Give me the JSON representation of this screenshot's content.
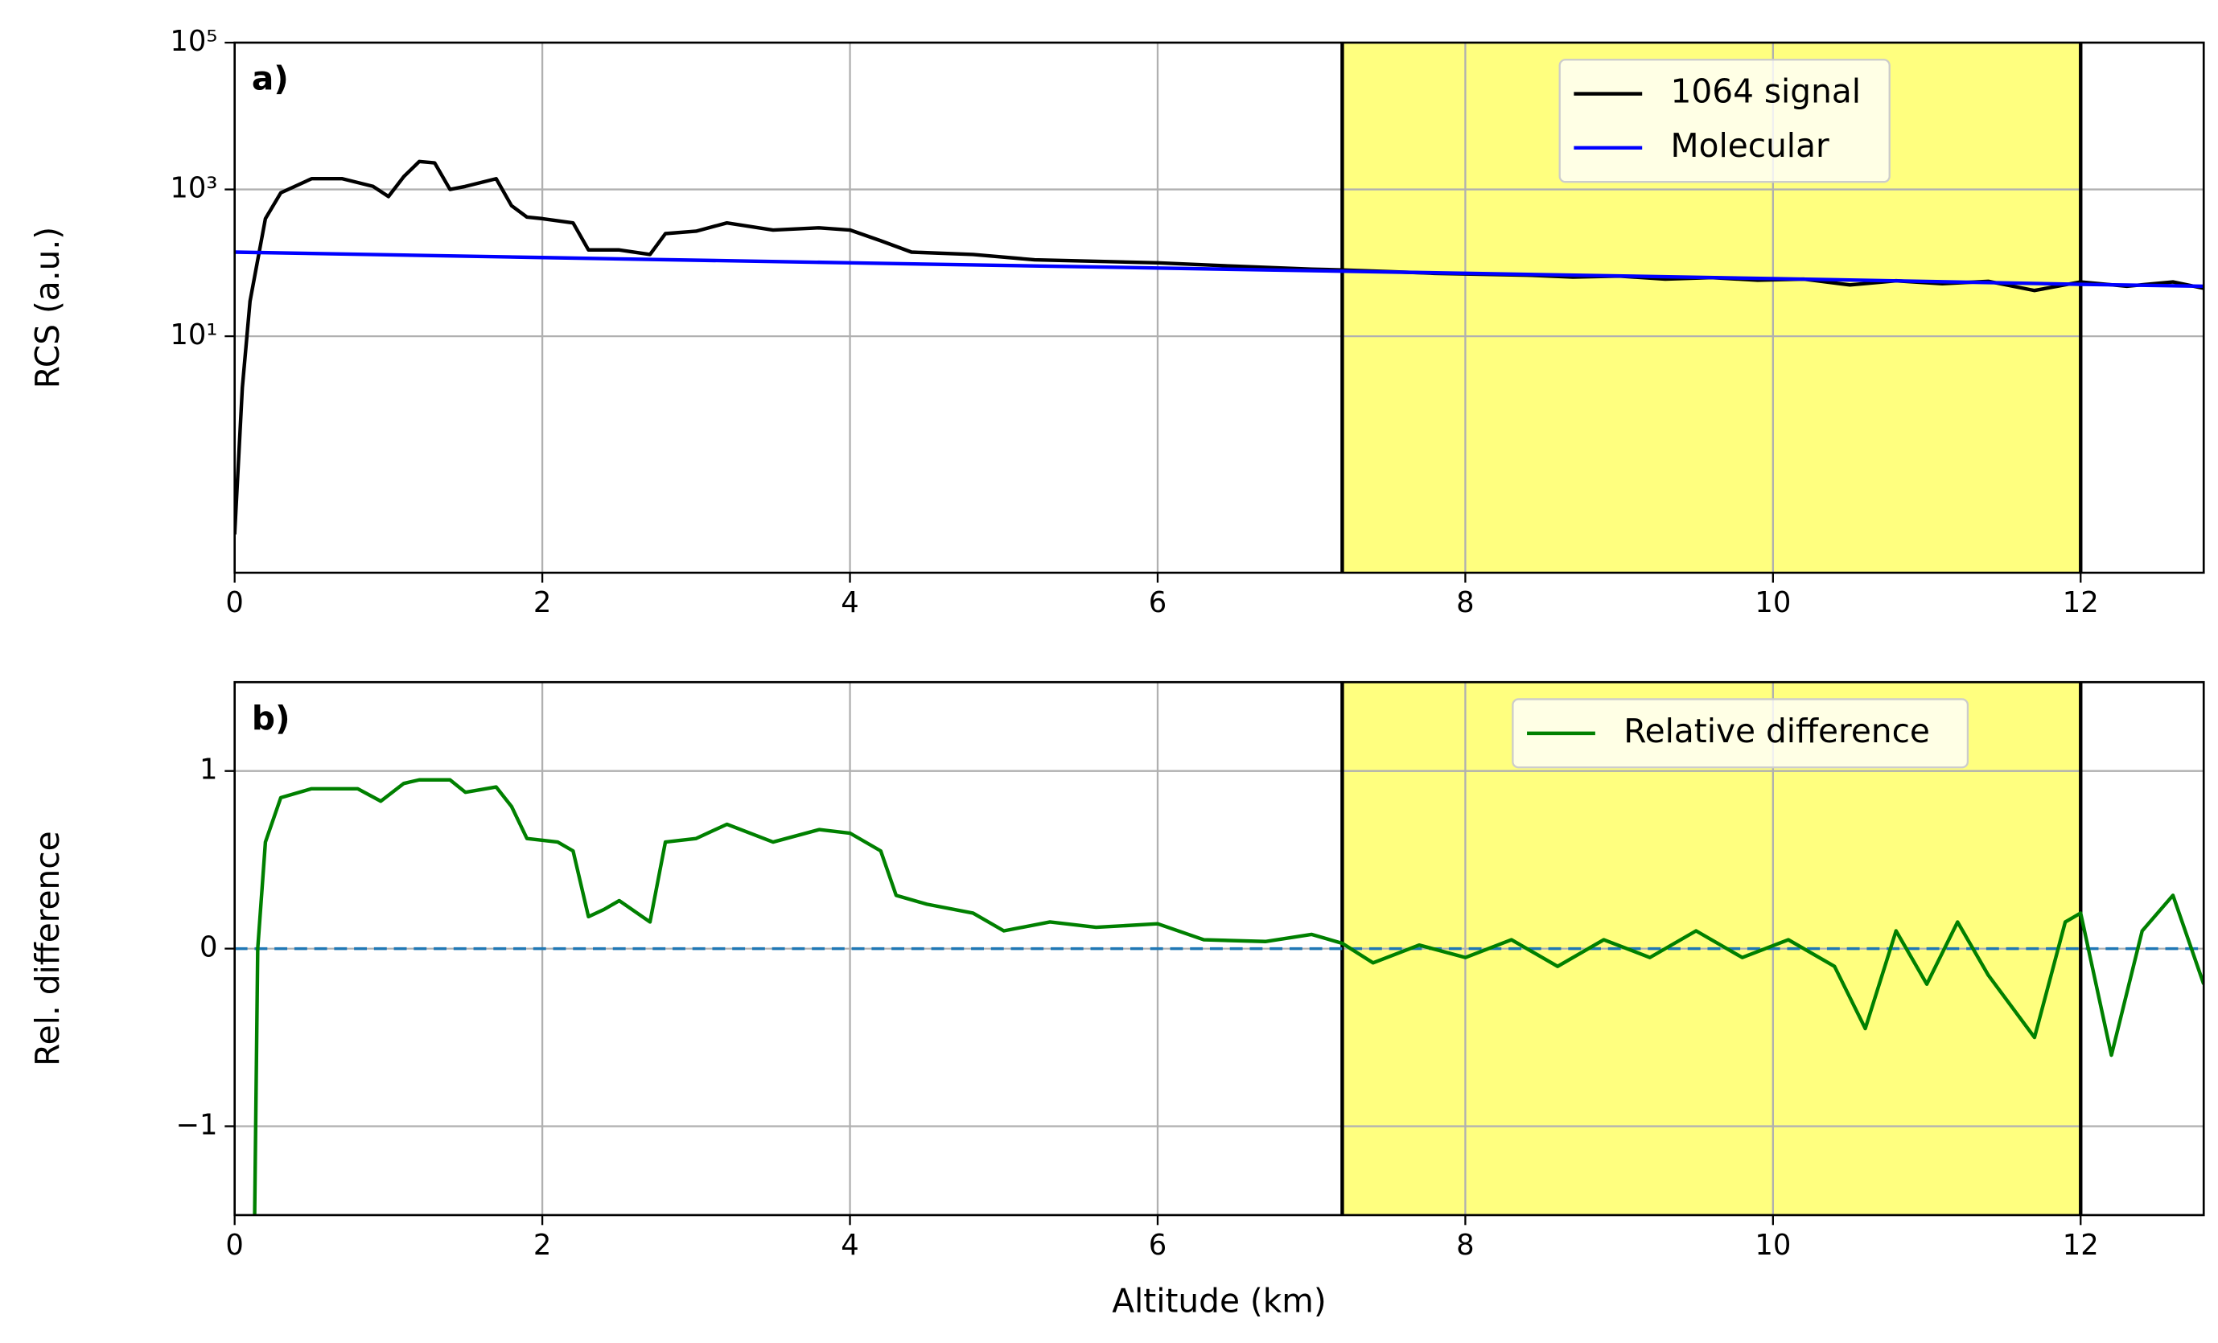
{
  "chart_data": [
    {
      "type": "line",
      "panel_label": "a)",
      "ylabel": "RCS (a.u.)",
      "log_y": true,
      "grid": true,
      "legend": "upper center",
      "xlim": [
        0,
        12.8
      ],
      "xticks": [
        0,
        2,
        4,
        6,
        8,
        10,
        12
      ],
      "ylim": [
        0.006,
        100000
      ],
      "yticks": [
        {
          "value": 10,
          "label": "10¹"
        },
        {
          "value": 1000,
          "label": "10³"
        },
        {
          "value": 100000,
          "label": "10⁵"
        }
      ],
      "shade": [
        7.2,
        12
      ],
      "shade_color": "#ffff7f",
      "series": [
        {
          "name": "1064 signal",
          "color": "#000000",
          "x": [
            0,
            0.05,
            0.1,
            0.2,
            0.3,
            0.5,
            0.7,
            0.9,
            1.0,
            1.1,
            1.2,
            1.3,
            1.4,
            1.5,
            1.7,
            1.8,
            1.9,
            2.0,
            2.2,
            2.3,
            2.5,
            2.7,
            2.8,
            3.0,
            3.2,
            3.5,
            3.8,
            4.0,
            4.2,
            4.4,
            4.8,
            5.2,
            5.6,
            6.0,
            6.5,
            7.0,
            7.2,
            7.5,
            7.8,
            8.1,
            8.4,
            8.7,
            9.0,
            9.3,
            9.6,
            9.9,
            10.2,
            10.5,
            10.8,
            11.1,
            11.4,
            11.7,
            12.0,
            12.3,
            12.6,
            12.8
          ],
          "values": [
            0.02,
            2,
            30,
            400,
            900,
            1400,
            1400,
            1100,
            800,
            1500,
            2400,
            2300,
            1000,
            1100,
            1400,
            600,
            420,
            400,
            350,
            150,
            150,
            130,
            250,
            270,
            350,
            280,
            300,
            280,
            200,
            140,
            130,
            110,
            105,
            100,
            90,
            82,
            80,
            76,
            72,
            70,
            68,
            64,
            66,
            60,
            63,
            58,
            60,
            50,
            57,
            52,
            56,
            42,
            55,
            48,
            55,
            45
          ]
        },
        {
          "name": "Molecular",
          "color": "#0000ff",
          "x": [
            0,
            2,
            4,
            6,
            8,
            10,
            12,
            12.8
          ],
          "values": [
            140,
            118,
            100,
            85,
            72,
            61,
            51,
            48
          ]
        }
      ]
    },
    {
      "type": "line",
      "panel_label": "b)",
      "ylabel": "Rel. difference",
      "xlabel": "Altitude (km)",
      "log_y": false,
      "grid": true,
      "legend": "upper center",
      "xlim": [
        0,
        12.8
      ],
      "xticks": [
        0,
        2,
        4,
        6,
        8,
        10,
        12
      ],
      "ylim": [
        -1.5,
        1.5
      ],
      "yticks": [
        {
          "value": -1,
          "label": "−1"
        },
        0,
        1
      ],
      "shade": [
        7.2,
        12
      ],
      "shade_color": "#ffff7f",
      "reference_line": 0,
      "reference_color": "#1f77b4",
      "series": [
        {
          "name": "Relative difference",
          "color": "#008000",
          "x": [
            0.13,
            0.15,
            0.2,
            0.3,
            0.5,
            0.8,
            0.95,
            1.1,
            1.2,
            1.4,
            1.5,
            1.7,
            1.8,
            1.9,
            2.1,
            2.2,
            2.3,
            2.4,
            2.5,
            2.7,
            2.8,
            3.0,
            3.2,
            3.5,
            3.8,
            4.0,
            4.2,
            4.3,
            4.5,
            4.8,
            5.0,
            5.3,
            5.6,
            6.0,
            6.3,
            6.7,
            7.0,
            7.2,
            7.4,
            7.7,
            8.0,
            8.3,
            8.6,
            8.9,
            9.2,
            9.5,
            9.8,
            10.1,
            10.4,
            10.6,
            10.8,
            11.0,
            11.2,
            11.4,
            11.7,
            11.9,
            12.0,
            12.2,
            12.4,
            12.6,
            12.8
          ],
          "values": [
            -1.5,
            0,
            0.6,
            0.85,
            0.9,
            0.9,
            0.83,
            0.93,
            0.95,
            0.95,
            0.88,
            0.91,
            0.8,
            0.62,
            0.6,
            0.55,
            0.18,
            0.22,
            0.27,
            0.15,
            0.6,
            0.62,
            0.7,
            0.6,
            0.67,
            0.65,
            0.55,
            0.3,
            0.25,
            0.2,
            0.1,
            0.15,
            0.12,
            0.14,
            0.05,
            0.04,
            0.08,
            0.03,
            -0.08,
            0.02,
            -0.05,
            0.05,
            -0.1,
            0.05,
            -0.05,
            0.1,
            -0.05,
            0.05,
            -0.1,
            -0.45,
            0.1,
            -0.2,
            0.15,
            -0.15,
            -0.5,
            0.15,
            0.2,
            -0.6,
            0.1,
            0.3,
            -0.2
          ]
        }
      ]
    }
  ]
}
